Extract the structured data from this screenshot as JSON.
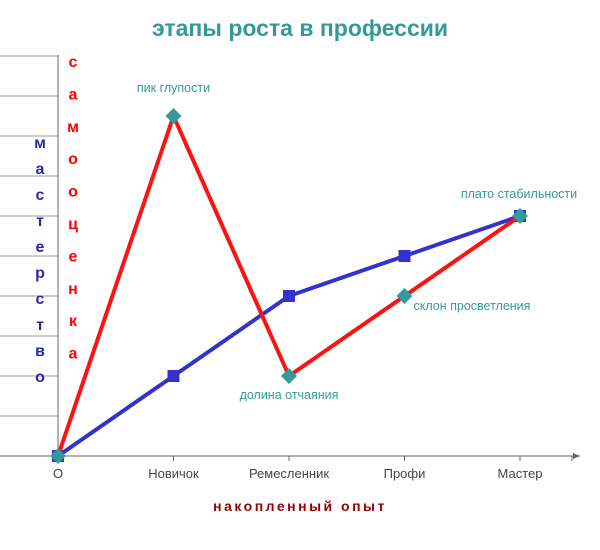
{
  "chart_data": {
    "type": "line",
    "title": "этапы роста в профессии",
    "xlabel": "накопленный  опыт",
    "ylabel_mastery": "мастерство",
    "ylabel_self": "самооценка",
    "categories": [
      "О",
      "Новичок",
      "Ремесленник",
      "Профи",
      "Мастер"
    ],
    "ylim": [
      0,
      10
    ],
    "grid": "horizontal",
    "series": [
      {
        "name": "мастерство",
        "values": [
          0,
          2,
          4,
          5,
          6
        ],
        "color": "#3333cc",
        "marker": "square",
        "label_color": "#2a2aa8"
      },
      {
        "name": "самооценка",
        "values": [
          0,
          8.5,
          2,
          4,
          6
        ],
        "color": "#ff1111",
        "marker": "diamond",
        "marker_color": "#339999",
        "label_color": "#ff0000"
      }
    ],
    "annotations": [
      {
        "text": "пик глупости",
        "x": "Новичок",
        "y": 8.5
      },
      {
        "text": "долина отчаяния",
        "x": "Ремесленник",
        "y": 2
      },
      {
        "text": "склон просветления",
        "x": "Профи",
        "y": 4
      },
      {
        "text": "плато стабильности",
        "x": "Мастер",
        "y": 6
      }
    ],
    "colors": {
      "title": "#339999",
      "annotation": "#339999",
      "xlabel": "#990000",
      "axis": "#666666",
      "grid": "#9a9a9a"
    }
  }
}
